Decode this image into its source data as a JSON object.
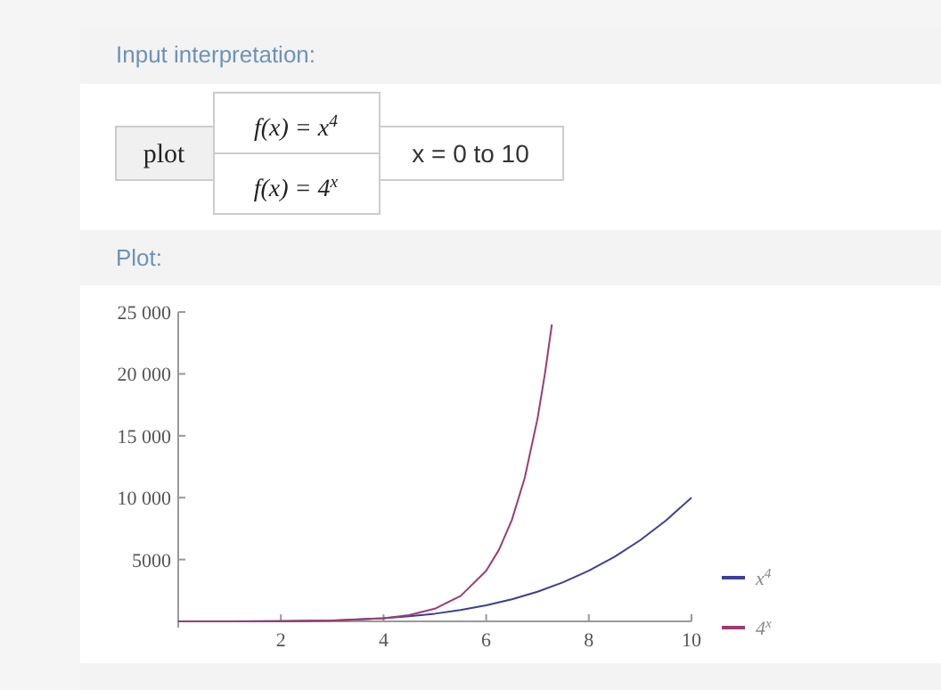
{
  "chart_data": {
    "type": "line",
    "title": "Plot:",
    "annotations": [
      "Input interpretation:",
      "plot",
      "f(x) = x$^{4}$",
      "f(x) = 4$^{x}$",
      "x = 0 to 10"
    ],
    "xlim": [
      0,
      10
    ],
    "xticks": [
      2,
      4,
      6,
      8,
      10
    ],
    "ylim": [
      -500,
      25000
    ],
    "yticks": [
      5000,
      {
        "value": 10000,
        "label": "10 000"
      },
      {
        "value": 15000,
        "label": "15 000"
      },
      {
        "value": 20000,
        "label": "20 000"
      },
      {
        "value": 25000,
        "label": "25 000"
      }
    ],
    "grid": false,
    "legend": "right",
    "series": [
      {
        "name": "x$^{4}$",
        "color": "#3d3d9c",
        "x": [
          0,
          1,
          2,
          3,
          4,
          4.5,
          5,
          5.5,
          6,
          6.5,
          7,
          7.5,
          8,
          8.5,
          9,
          9.5,
          10
        ],
        "values": [
          0,
          1,
          16,
          81,
          256,
          410,
          625,
          915,
          1296,
          1785,
          2401,
          3164,
          4096,
          5220,
          6561,
          8145,
          10000
        ]
      },
      {
        "name": "4$^{x}$",
        "color": "#9b3d6f",
        "x": [
          0,
          1,
          2,
          3,
          4,
          4.5,
          5,
          5.5,
          6,
          6.25,
          6.5,
          6.75,
          7,
          7.15,
          7.28
        ],
        "values": [
          1,
          4,
          16,
          64,
          256,
          512,
          1024,
          2048,
          4096,
          5793,
          8192,
          11585,
          16384,
          20170,
          24000
        ]
      }
    ]
  }
}
